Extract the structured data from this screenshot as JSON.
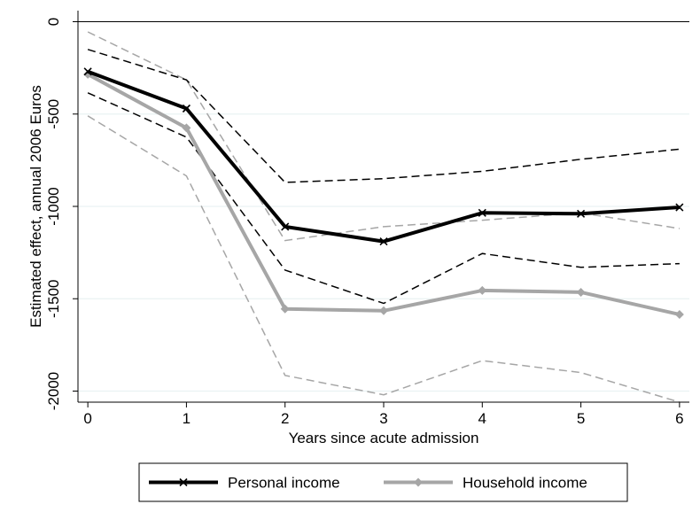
{
  "chart_data": {
    "type": "line",
    "xlabel": "Years since acute admission",
    "ylabel": "Estimated effect, annual 2006 Euros",
    "x": [
      0,
      1,
      2,
      3,
      4,
      5,
      6
    ],
    "xlim": [
      -0.1,
      6.1
    ],
    "ylim": [
      -2060,
      60
    ],
    "x_ticks": [
      "0",
      "1",
      "2",
      "3",
      "4",
      "5",
      "6"
    ],
    "y_ticks": [
      0,
      -500,
      -1000,
      -1500,
      -2000
    ],
    "y_tick_labels": [
      "0",
      "-500",
      "-1000",
      "-1500",
      "-2000"
    ],
    "reference_line": 0,
    "grid": "horizontal",
    "legend_position": "bottom",
    "series": [
      {
        "name": "Personal income",
        "color": "#000000",
        "marker": "x",
        "values": [
          -270,
          -470,
          -1110,
          -1190,
          -1035,
          -1040,
          -1005
        ],
        "ci_lower": [
          -385,
          -625,
          -1345,
          -1525,
          -1255,
          -1330,
          -1310
        ],
        "ci_upper": [
          -150,
          -315,
          -870,
          -850,
          -810,
          -745,
          -690
        ]
      },
      {
        "name": "Household income",
        "color": "#a6a6a6",
        "marker": "diamond",
        "values": [
          -285,
          -575,
          -1555,
          -1565,
          -1455,
          -1465,
          -1585
        ],
        "ci_lower": [
          -510,
          -835,
          -1915,
          -2020,
          -1835,
          -1900,
          -2060
        ],
        "ci_upper": [
          -55,
          -315,
          -1185,
          -1110,
          -1075,
          -1035,
          -1120
        ]
      }
    ]
  }
}
